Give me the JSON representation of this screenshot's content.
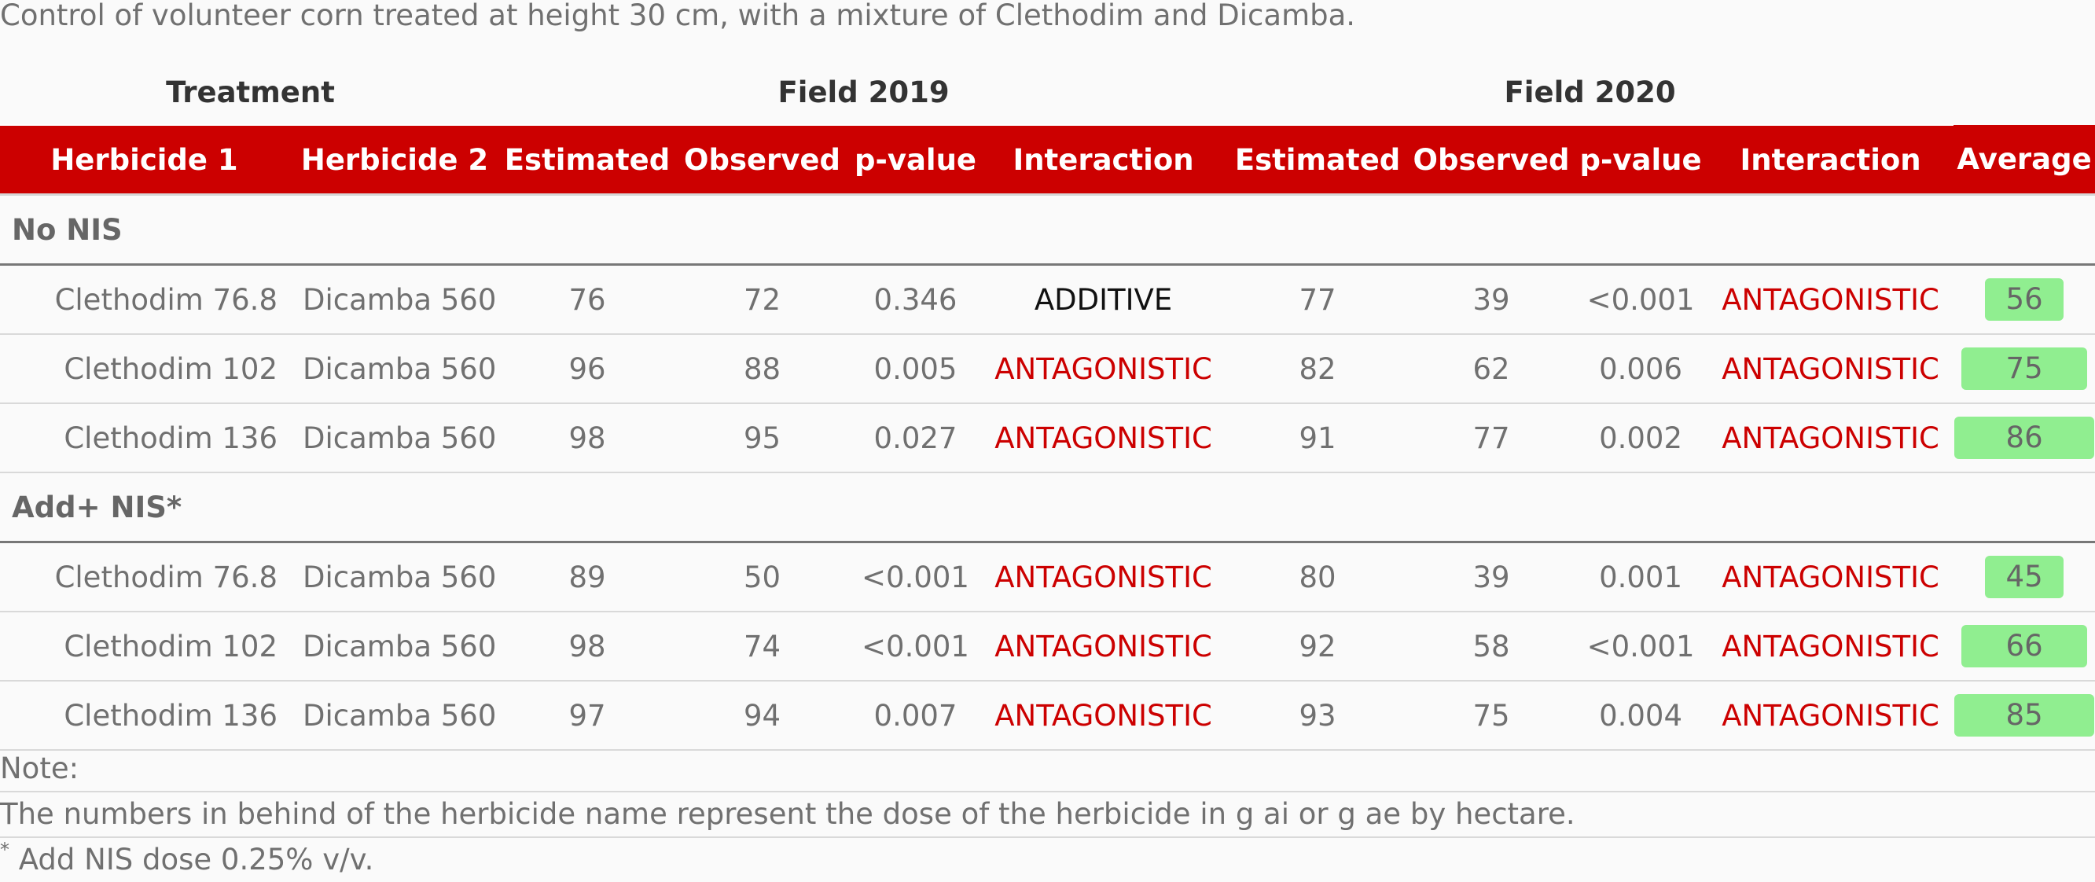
{
  "caption": "Control of volunteer corn treated at height 30 cm, with a mixture of Clethodim and Dicamba.",
  "groups": {
    "treatment": "Treatment",
    "field2019": "Field 2019",
    "field2020": "Field 2020"
  },
  "columns": [
    "Herbicide 1",
    "Herbicide 2",
    "Estimated",
    "Observed",
    "p-value",
    "Interaction",
    "Estimated",
    "Observed",
    "p-value",
    "Interaction",
    "Average"
  ],
  "sections": [
    {
      "label": "No NIS",
      "rows": [
        {
          "h1": "Clethodim 76.8",
          "h2": "Dicamba 560",
          "est19": "76",
          "obs19": "72",
          "p19": "0.346",
          "int19": "ADDITIVE",
          "est20": "77",
          "obs20": "39",
          "p20": "<0.001",
          "int20": "ANTAGONISTIC",
          "avg": "56"
        },
        {
          "h1": "Clethodim 102",
          "h2": "Dicamba 560",
          "est19": "96",
          "obs19": "88",
          "p19": "0.005",
          "int19": "ANTAGONISTIC",
          "est20": "82",
          "obs20": "62",
          "p20": "0.006",
          "int20": "ANTAGONISTIC",
          "avg": "75"
        },
        {
          "h1": "Clethodim 136",
          "h2": "Dicamba 560",
          "est19": "98",
          "obs19": "95",
          "p19": "0.027",
          "int19": "ANTAGONISTIC",
          "est20": "91",
          "obs20": "77",
          "p20": "0.002",
          "int20": "ANTAGONISTIC",
          "avg": "86"
        }
      ]
    },
    {
      "label": "Add+ NIS*",
      "rows": [
        {
          "h1": "Clethodim 76.8",
          "h2": "Dicamba 560",
          "est19": "89",
          "obs19": "50",
          "p19": "<0.001",
          "int19": "ANTAGONISTIC",
          "est20": "80",
          "obs20": "39",
          "p20": "0.001",
          "int20": "ANTAGONISTIC",
          "avg": "45"
        },
        {
          "h1": "Clethodim 102",
          "h2": "Dicamba 560",
          "est19": "98",
          "obs19": "74",
          "p19": "<0.001",
          "int19": "ANTAGONISTIC",
          "est20": "92",
          "obs20": "58",
          "p20": "<0.001",
          "int20": "ANTAGONISTIC",
          "avg": "66"
        },
        {
          "h1": "Clethodim 136",
          "h2": "Dicamba 560",
          "est19": "97",
          "obs19": "94",
          "p19": "0.007",
          "int19": "ANTAGONISTIC",
          "est20": "93",
          "obs20": "75",
          "p20": "0.004",
          "int20": "ANTAGONISTIC",
          "avg": "85"
        }
      ]
    }
  ],
  "notes": {
    "title": "Note:",
    "line1": "The numbers in behind of the herbicide name represent the dose of the herbicide in g ai or g ae by hectare.",
    "footnote_mark": "*",
    "line2": " Add NIS dose 0.25% v/v."
  },
  "colors": {
    "header_bg": "#cc0000",
    "antagonistic": "#cc0000",
    "additive": "#111111",
    "average_badge": "#90ee90"
  }
}
